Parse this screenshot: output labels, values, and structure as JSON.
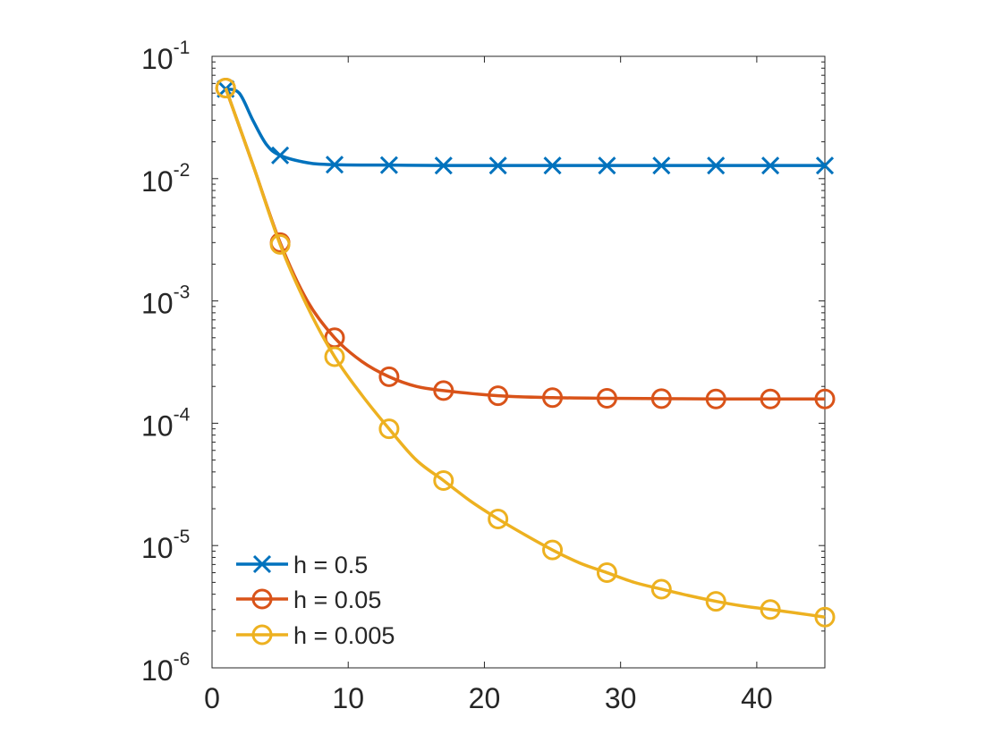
{
  "chart_data": {
    "type": "line",
    "title": "",
    "xlabel": "",
    "ylabel": "",
    "xlim": [
      0,
      45
    ],
    "ylim": [
      1e-06,
      0.1
    ],
    "yscale": "log",
    "xticks": [
      "0",
      "10",
      "20",
      "30",
      "40"
    ],
    "xtick_values": [
      0,
      10,
      20,
      30,
      40
    ],
    "yticks": [
      {
        "base": "10",
        "exp": "-1",
        "value": 0.1
      },
      {
        "base": "10",
        "exp": "-2",
        "value": 0.01
      },
      {
        "base": "10",
        "exp": "-3",
        "value": 0.001
      },
      {
        "base": "10",
        "exp": "-4",
        "value": 0.0001
      },
      {
        "base": "10",
        "exp": "-5",
        "value": 1e-05
      },
      {
        "base": "10",
        "exp": "-6",
        "value": 1e-06
      }
    ],
    "grid": false,
    "legend_position": "bottom-left",
    "series": [
      {
        "name": "h = 0.5",
        "color": "#0072BD",
        "marker": "x",
        "x": [
          1,
          2,
          3,
          4,
          5,
          7,
          9,
          13,
          17,
          21,
          25,
          29,
          33,
          37,
          41,
          45
        ],
        "y": [
          0.054,
          0.05,
          0.03,
          0.019,
          0.0155,
          0.0135,
          0.013,
          0.0129,
          0.0128,
          0.0128,
          0.0128,
          0.0128,
          0.0128,
          0.0128,
          0.0128,
          0.0128
        ],
        "marker_x": [
          1,
          5,
          9,
          13,
          17,
          21,
          25,
          29,
          33,
          37,
          41,
          45
        ]
      },
      {
        "name": "h = 0.05",
        "color": "#D95319",
        "marker": "o",
        "x": [
          1,
          3,
          5,
          7,
          9,
          11,
          13,
          15,
          17,
          21,
          25,
          29,
          33,
          37,
          41,
          45
        ],
        "y": [
          0.055,
          0.013,
          0.003,
          0.001,
          0.0005,
          0.00032,
          0.00024,
          0.0002,
          0.000185,
          0.000168,
          0.000162,
          0.00016,
          0.000159,
          0.000158,
          0.000158,
          0.000158
        ],
        "marker_x": [
          1,
          5,
          9,
          13,
          17,
          21,
          25,
          29,
          33,
          37,
          41,
          45
        ]
      },
      {
        "name": "h = 0.005",
        "color": "#EDB120",
        "marker": "o",
        "x": [
          1,
          3,
          5,
          7,
          9,
          11,
          13,
          15,
          17,
          19,
          21,
          23,
          25,
          27,
          29,
          31,
          33,
          35,
          37,
          39,
          41,
          43,
          45
        ],
        "y": [
          0.055,
          0.013,
          0.0029,
          0.0009,
          0.00035,
          0.00017,
          9e-05,
          5e-05,
          3.4e-05,
          2.3e-05,
          1.65e-05,
          1.22e-05,
          9.2e-06,
          7.2e-06,
          6e-06,
          5e-06,
          4.4e-06,
          3.9e-06,
          3.5e-06,
          3.2e-06,
          3e-06,
          2.8e-06,
          2.6e-06
        ],
        "marker_x": [
          1,
          5,
          9,
          13,
          17,
          21,
          25,
          29,
          33,
          37,
          41,
          45
        ]
      }
    ]
  }
}
